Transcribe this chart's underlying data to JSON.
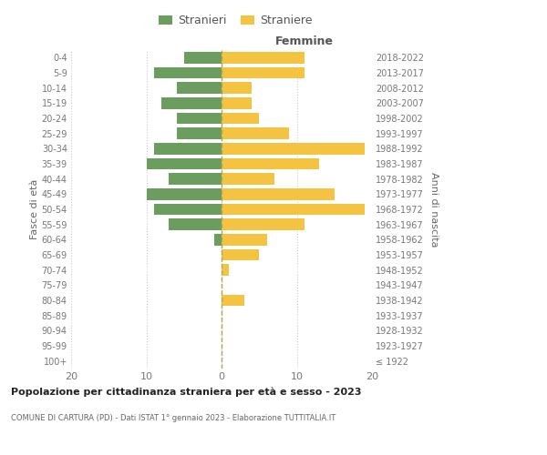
{
  "age_groups": [
    "100+",
    "95-99",
    "90-94",
    "85-89",
    "80-84",
    "75-79",
    "70-74",
    "65-69",
    "60-64",
    "55-59",
    "50-54",
    "45-49",
    "40-44",
    "35-39",
    "30-34",
    "25-29",
    "20-24",
    "15-19",
    "10-14",
    "5-9",
    "0-4"
  ],
  "birth_years": [
    "≤ 1922",
    "1923-1927",
    "1928-1932",
    "1933-1937",
    "1938-1942",
    "1943-1947",
    "1948-1952",
    "1953-1957",
    "1958-1962",
    "1963-1967",
    "1968-1972",
    "1973-1977",
    "1978-1982",
    "1983-1987",
    "1988-1992",
    "1993-1997",
    "1998-2002",
    "2003-2007",
    "2008-2012",
    "2013-2017",
    "2018-2022"
  ],
  "males": [
    0,
    0,
    0,
    0,
    0,
    0,
    0,
    0,
    1,
    7,
    9,
    10,
    7,
    10,
    9,
    6,
    6,
    8,
    6,
    9,
    5
  ],
  "females": [
    0,
    0,
    0,
    0,
    3,
    0,
    1,
    5,
    6,
    11,
    19,
    15,
    7,
    13,
    19,
    9,
    5,
    4,
    4,
    11,
    11
  ],
  "male_color": "#6b9e5e",
  "female_color": "#f5c342",
  "title": "Popolazione per cittadinanza straniera per età e sesso - 2023",
  "subtitle": "COMUNE DI CARTURA (PD) - Dati ISTAT 1° gennaio 2023 - Elaborazione TUTTITALIA.IT",
  "xlabel_right": "Femmine",
  "ylabel_left": "Fasce di età",
  "ylabel_right": "Anni di nascita",
  "legend_males": "Stranieri",
  "legend_females": "Straniere",
  "xlim": 20,
  "background_color": "#ffffff",
  "grid_color": "#cccccc"
}
